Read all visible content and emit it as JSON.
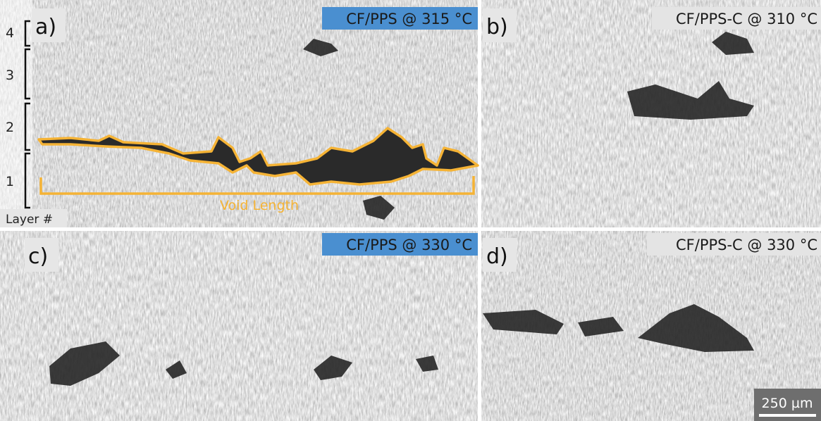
{
  "panels": [
    {
      "letter": "a)",
      "title": "CF/PPS @ 315 °C"
    },
    {
      "letter": "b)",
      "title": "CF/PPS-C @ 310 °C"
    },
    {
      "letter": "c)",
      "title": "CF/PPS @ 330 °C"
    },
    {
      "letter": "d)",
      "title": "CF/PPS-C @ 330 °C"
    }
  ],
  "layers": {
    "labels": [
      "4",
      "3",
      "2",
      "1"
    ],
    "axis_label": "Layer #"
  },
  "annotation": "Void Length",
  "scale_bar": "250 µm"
}
